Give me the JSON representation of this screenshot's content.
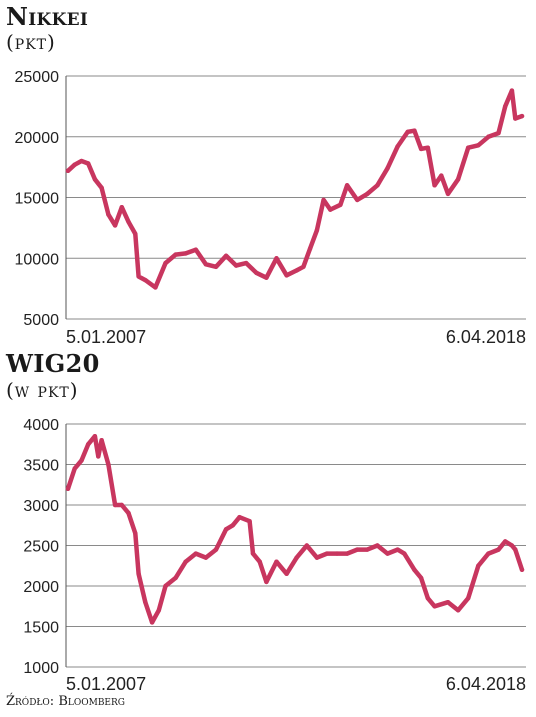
{
  "source": "Źródło: Bloomberg",
  "chart_data": [
    {
      "type": "line",
      "title": "Nikkei",
      "unit": "(pkt)",
      "color": "#c8365f",
      "ylim": [
        5000,
        25000
      ],
      "yticks": [
        "25000",
        "20000",
        "15000",
        "10000",
        "5000"
      ],
      "ytick_values": [
        25000,
        20000,
        15000,
        10000,
        5000
      ],
      "x_start_label": "5.01.2007",
      "x_end_label": "6.04.2018",
      "grid": true,
      "series": [
        {
          "x": [
            "2007-01",
            "2007-03",
            "2007-05",
            "2007-07",
            "2007-09",
            "2007-11",
            "2008-01",
            "2008-03",
            "2008-05",
            "2008-07",
            "2008-09",
            "2008-10",
            "2008-12",
            "2009-03",
            "2009-06",
            "2009-09",
            "2009-12",
            "2010-03",
            "2010-06",
            "2010-09",
            "2010-12",
            "2011-03",
            "2011-06",
            "2011-09",
            "2011-12",
            "2012-03",
            "2012-06",
            "2012-09",
            "2012-11",
            "2013-01",
            "2013-03",
            "2013-05",
            "2013-07",
            "2013-10",
            "2013-12",
            "2014-03",
            "2014-06",
            "2014-09",
            "2014-12",
            "2015-03",
            "2015-06",
            "2015-08",
            "2015-10",
            "2015-12",
            "2016-02",
            "2016-04",
            "2016-06",
            "2016-09",
            "2016-12",
            "2017-03",
            "2017-06",
            "2017-09",
            "2017-11",
            "2018-01",
            "2018-02",
            "2018-04"
          ],
          "values": [
            17200,
            17700,
            18000,
            17800,
            16500,
            15800,
            13600,
            12700,
            14200,
            13000,
            12000,
            8500,
            8200,
            7600,
            9600,
            10300,
            10400,
            10700,
            9500,
            9300,
            10200,
            9400,
            9600,
            8800,
            8400,
            10000,
            8600,
            9000,
            9300,
            10800,
            12300,
            14800,
            14000,
            14400,
            16000,
            14800,
            15300,
            16000,
            17400,
            19200,
            20400,
            20500,
            19000,
            19100,
            16000,
            16800,
            15300,
            16500,
            19100,
            19300,
            20000,
            20300,
            22500,
            23800,
            21500,
            21700
          ]
        }
      ]
    },
    {
      "type": "line",
      "title": "WIG20",
      "unit": "(w pkt)",
      "color": "#c8365f",
      "ylim": [
        1000,
        4000
      ],
      "yticks": [
        "4000",
        "3500",
        "3000",
        "2500",
        "2000",
        "1500",
        "1000"
      ],
      "ytick_values": [
        4000,
        3500,
        3000,
        2500,
        2000,
        1500,
        1000
      ],
      "x_start_label": "5.01.2007",
      "x_end_label": "6.04.2018",
      "grid": true,
      "series": [
        {
          "x": [
            "2007-01",
            "2007-03",
            "2007-05",
            "2007-07",
            "2007-09",
            "2007-10",
            "2007-11",
            "2008-01",
            "2008-03",
            "2008-05",
            "2008-07",
            "2008-09",
            "2008-10",
            "2008-12",
            "2009-02",
            "2009-04",
            "2009-06",
            "2009-09",
            "2009-12",
            "2010-03",
            "2010-06",
            "2010-09",
            "2010-12",
            "2011-02",
            "2011-04",
            "2011-07",
            "2011-08",
            "2011-10",
            "2011-12",
            "2012-03",
            "2012-06",
            "2012-09",
            "2012-12",
            "2013-03",
            "2013-06",
            "2013-09",
            "2013-12",
            "2014-03",
            "2014-06",
            "2014-09",
            "2014-12",
            "2015-03",
            "2015-05",
            "2015-08",
            "2015-10",
            "2015-12",
            "2016-02",
            "2016-06",
            "2016-09",
            "2016-12",
            "2017-03",
            "2017-06",
            "2017-09",
            "2017-11",
            "2018-01",
            "2018-02",
            "2018-04"
          ],
          "values": [
            3200,
            3450,
            3550,
            3750,
            3850,
            3600,
            3800,
            3500,
            3000,
            3000,
            2900,
            2650,
            2150,
            1800,
            1550,
            1700,
            2000,
            2100,
            2300,
            2400,
            2350,
            2450,
            2700,
            2750,
            2850,
            2800,
            2400,
            2300,
            2050,
            2300,
            2150,
            2350,
            2500,
            2350,
            2400,
            2400,
            2400,
            2450,
            2450,
            2500,
            2400,
            2450,
            2400,
            2200,
            2100,
            1850,
            1750,
            1800,
            1700,
            1850,
            2250,
            2400,
            2450,
            2550,
            2500,
            2450,
            2200
          ]
        }
      ]
    }
  ]
}
